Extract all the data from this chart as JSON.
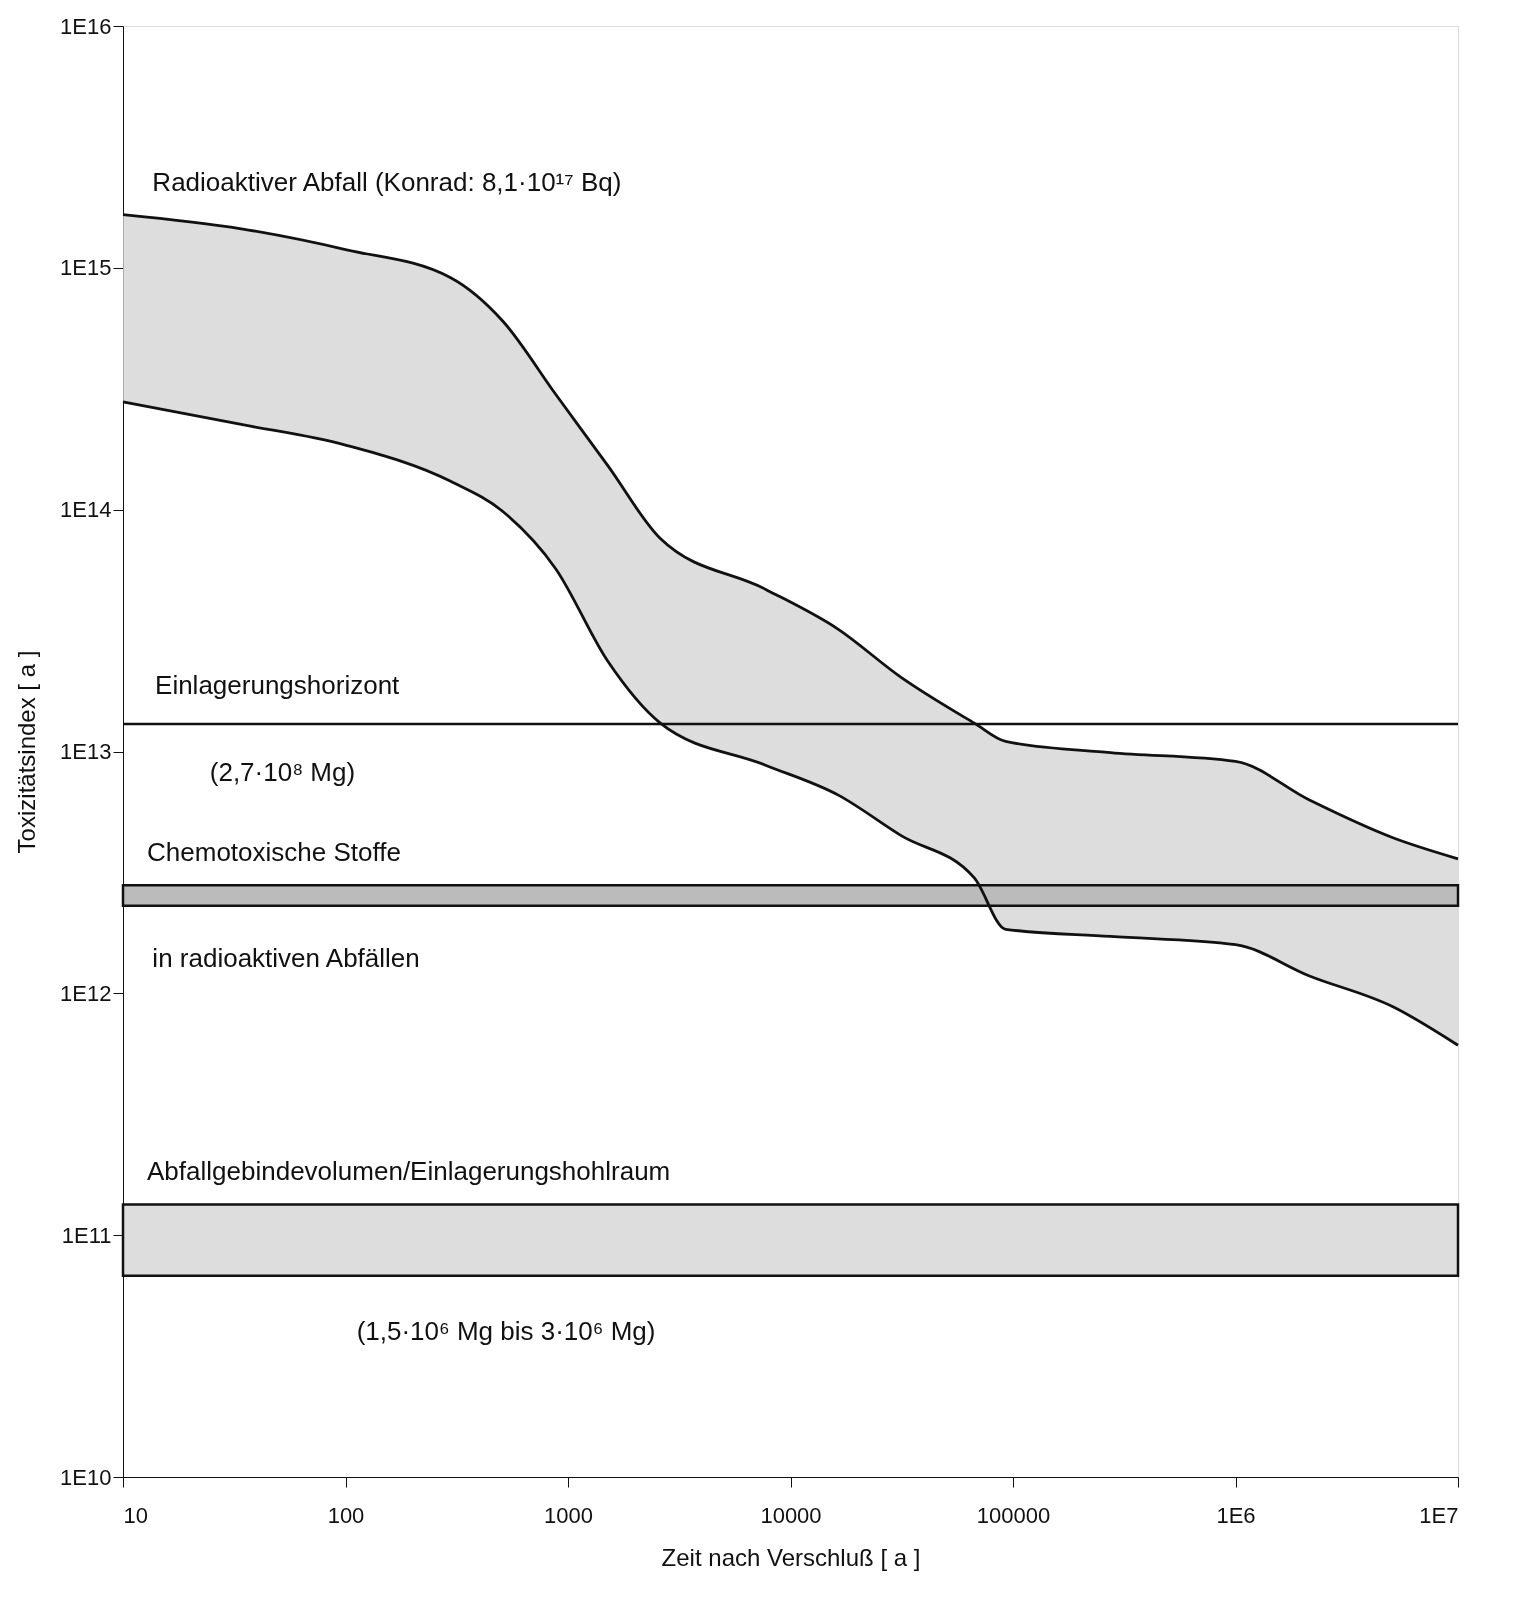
{
  "chart_data": {
    "type": "line",
    "xlabel": "Zeit nach Verschluß [ a ]",
    "ylabel": "Toxizitätsindex [ a ]",
    "log": "xy",
    "grid": false,
    "xlim": [
      10,
      10000000
    ],
    "ylim": [
      10000000000,
      10000000000000000
    ],
    "xticks": [
      10,
      100,
      1000,
      10000,
      100000,
      {
        "value": 1000000,
        "label": "1E6"
      },
      {
        "value": 10000000,
        "label": "1E7"
      }
    ],
    "yticks": [
      {
        "value": 10000000000,
        "label": "1E10"
      },
      {
        "value": 100000000000,
        "label": "1E11"
      },
      {
        "value": 1000000000000,
        "label": "1E12"
      },
      {
        "value": 10000000000000,
        "label": "1E13"
      },
      {
        "value": 100000000000000,
        "label": "1E14"
      },
      {
        "value": 1000000000000000,
        "label": "1E15"
      },
      {
        "value": 10000000000000000,
        "label": "1E16"
      }
    ],
    "x": [
      10,
      34,
      100,
      297,
      511,
      880,
      1510,
      2600,
      7670,
      16400,
      31300,
      67000,
      92700,
      274000,
      1000000,
      2150000,
      5100000,
      10000000
    ],
    "series": [
      {
        "color": "#111111",
        "values": [
          1660000000000000.0,
          1450000000000000.0,
          1190000000000000.0,
          910000000000000.0,
          600000000000000.0,
          300000000000000.0,
          152000000000000.0,
          76000000000000.0,
          47000000000000.0,
          32000000000000.0,
          20300000000000.0,
          13100000000000.0,
          11000000000000.0,
          9900000000000.0,
          9100000000000.0,
          6300000000000.0,
          4400000000000.0,
          3600000000000.0
        ],
        "upper": [
          1660000000000000.0,
          1450000000000000.0,
          1190000000000000.0,
          910000000000000.0,
          600000000000000.0,
          300000000000000.0,
          152000000000000.0,
          76000000000000.0,
          47000000000000.0,
          32000000000000.0,
          20300000000000.0,
          13100000000000.0,
          11000000000000.0,
          9900000000000.0,
          9100000000000.0,
          6300000000000.0,
          4400000000000.0,
          3600000000000.0
        ],
        "lower": [
          279000000000000.0,
          225000000000000.0,
          185000000000000.0,
          131000000000000.0,
          98000000000000.0,
          57000000000000.0,
          23600000000000.0,
          13100000000000.0,
          8800000000000.0,
          6600000000000.0,
          4500000000000.0,
          3000000000000.0,
          1840000000000.0,
          1720000000000.0,
          1590000000000.0,
          1180000000000.0,
          880000000000.0,
          610000000000.0
        ]
      },
      {
        "color": "#111111",
        "values": [
          279000000000000.0,
          225000000000000.0,
          185000000000000.0,
          131000000000000.0,
          98000000000000.0,
          57000000000000.0,
          23600000000000.0,
          13100000000000.0,
          8800000000000.0,
          6600000000000.0,
          4500000000000.0,
          3000000000000.0,
          1840000000000.0,
          1720000000000.0,
          1590000000000.0,
          1180000000000.0,
          880000000000.0,
          610000000000.0
        ]
      }
    ],
    "ref_lines": [
      {
        "axis": "y",
        "value": 13000000000000,
        "color": "#111111"
      }
    ],
    "bands": [
      {
        "axis": "y",
        "from": 2300000000000,
        "to": 2800000000000,
        "color": "#bbbbbb"
      },
      {
        "axis": "y",
        "from": 68000000000,
        "to": 134000000000,
        "color": "#dddddd"
      }
    ],
    "annotations": [
      "Radioaktiver Abfall (Konrad: 8,1·10¹⁷ Bq)",
      "Einlagerungshorizont",
      "(2,7·10⁸ Mg)",
      "Chemotoxische Stoffe",
      "in radioaktiven Abfällen",
      "Abfallgebindevolumen/Einlagerungshohlraum",
      "(1,5·10⁶ Mg bis 3·10⁶ Mg)"
    ]
  }
}
